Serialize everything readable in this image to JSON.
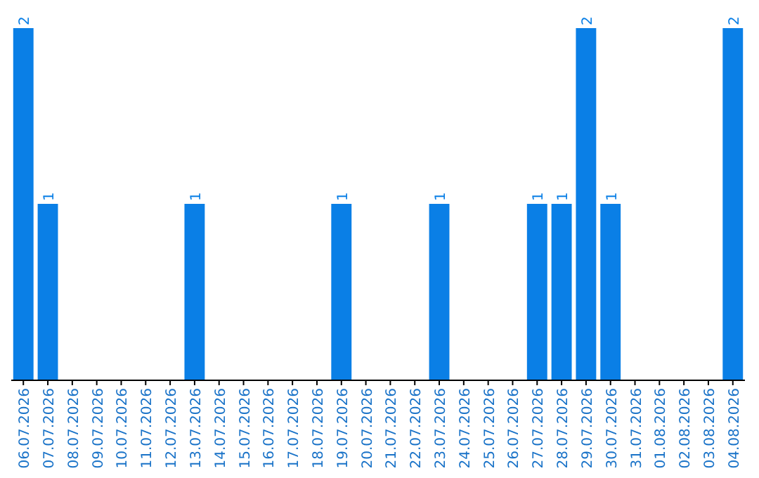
{
  "chart_data": {
    "type": "bar",
    "categories": [
      "06.07.2026",
      "07.07.2026",
      "08.07.2026",
      "09.07.2026",
      "10.07.2026",
      "11.07.2026",
      "12.07.2026",
      "13.07.2026",
      "14.07.2026",
      "15.07.2026",
      "16.07.2026",
      "17.07.2026",
      "18.07.2026",
      "19.07.2026",
      "20.07.2026",
      "21.07.2026",
      "22.07.2026",
      "23.07.2026",
      "24.07.2026",
      "25.07.2026",
      "26.07.2026",
      "27.07.2026",
      "28.07.2026",
      "29.07.2026",
      "30.07.2026",
      "31.07.2026",
      "01.08.2026",
      "02.08.2026",
      "03.08.2026",
      "04.08.2026"
    ],
    "values": [
      2,
      1,
      0,
      0,
      0,
      0,
      0,
      1,
      0,
      0,
      0,
      0,
      0,
      1,
      0,
      0,
      0,
      1,
      0,
      0,
      0,
      1,
      1,
      2,
      1,
      0,
      0,
      0,
      0,
      2
    ],
    "value_labels": [
      "2",
      "1",
      null,
      null,
      null,
      null,
      null,
      "1",
      null,
      null,
      null,
      null,
      null,
      "1",
      null,
      null,
      null,
      "1",
      null,
      null,
      null,
      "1",
      "1",
      "2",
      "1",
      null,
      null,
      null,
      null,
      "2"
    ],
    "color": "#0a7fe6",
    "grid": false
  }
}
